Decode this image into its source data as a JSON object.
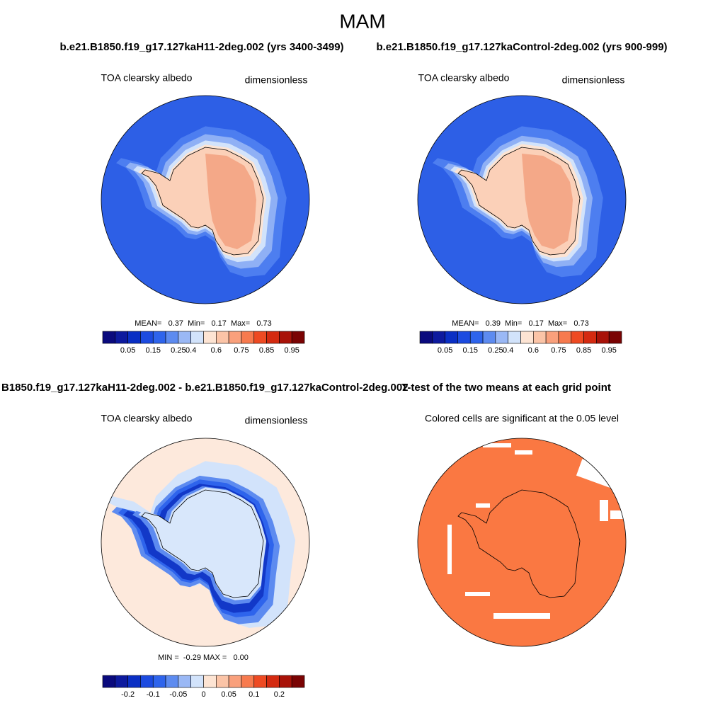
{
  "title": "MAM",
  "panels": [
    {
      "header": "b.e21.B1850.f19_g17.127kaH11-2deg.002 (yrs 3400-3499)",
      "left_label": "TOA clearsky albedo",
      "right_label": "dimensionless",
      "stats": "MEAN=   0.37  Min=   0.17  Max=   0.73",
      "colorbar": {
        "colors": [
          "#0a0a7d",
          "#0d1a9e",
          "#0a2fc4",
          "#1c4be0",
          "#2e64ec",
          "#5d8bf0",
          "#9ab8f5",
          "#d2e3fb",
          "#fde4d3",
          "#fbc4a7",
          "#f9a07c",
          "#f77a4e",
          "#ee4a22",
          "#d42a10",
          "#a81208",
          "#7a0303"
        ],
        "labels": [
          "0.05",
          "0.15",
          "0.25",
          "0.4",
          "0.6",
          "0.75",
          "0.85",
          "0.95"
        ]
      }
    },
    {
      "header": "b.e21.B1850.f19_g17.127kaControl-2deg.002 (yrs 900-999)",
      "left_label": "TOA clearsky albedo",
      "right_label": "dimensionless",
      "stats": "MEAN=   0.39  Min=   0.17  Max=   0.73",
      "colorbar": {
        "colors": [
          "#0a0a7d",
          "#0d1a9e",
          "#0a2fc4",
          "#1c4be0",
          "#2e64ec",
          "#5d8bf0",
          "#9ab8f5",
          "#d2e3fb",
          "#fde4d3",
          "#fbc4a7",
          "#f9a07c",
          "#f77a4e",
          "#ee4a22",
          "#d42a10",
          "#a81208",
          "#7a0303"
        ],
        "labels": [
          "0.05",
          "0.15",
          "0.25",
          "0.4",
          "0.6",
          "0.75",
          "0.85",
          "0.95"
        ]
      }
    },
    {
      "header": "B1850.f19_g17.127kaH11-2deg.002 - b.e21.B1850.f19_g17.127kaControl-2deg.002",
      "left_label": "TOA clearsky albedo",
      "right_label": "dimensionless",
      "stats": "MIN =  -0.29 MAX =   0.00",
      "colorbar": {
        "colors": [
          "#0a0a7d",
          "#0d1a9e",
          "#0a2fc4",
          "#1c4be0",
          "#2e64ec",
          "#5d8bf0",
          "#9ab8f5",
          "#d2e3fb",
          "#fde4d3",
          "#fbc4a7",
          "#f9a07c",
          "#f77a4e",
          "#ee4a22",
          "#d42a10",
          "#a81208",
          "#7a0303"
        ],
        "labels": [
          "-0.2",
          "-0.1",
          "-0.05",
          "0",
          "0.05",
          "0.1",
          "0.2"
        ]
      }
    },
    {
      "header": "T-test of the two means at each grid point",
      "note": "Colored cells are significant at the 0.05 level"
    }
  ]
}
